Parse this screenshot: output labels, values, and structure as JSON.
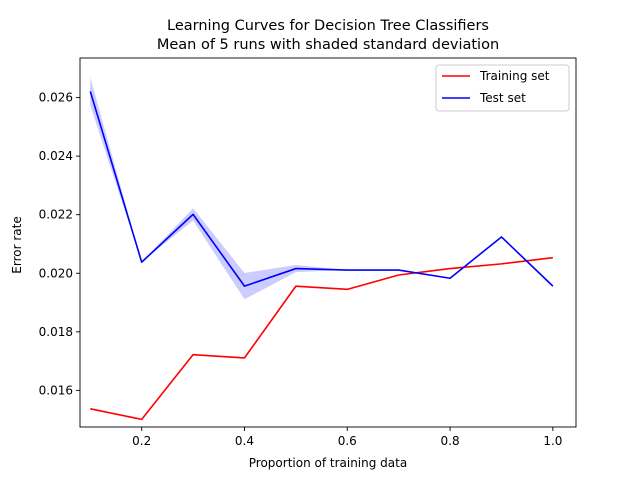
{
  "chart_data": {
    "type": "line",
    "title": "Learning Curves for Decision Tree Classifiers",
    "subtitle": "Mean of 5 runs with shaded standard deviation",
    "xlabel": "Proportion of training data",
    "ylabel": "Error rate",
    "xlim": [
      0.08,
      1.045
    ],
    "ylim": [
      0.01475,
      0.02735
    ],
    "xticks": [
      0.2,
      0.4,
      0.6,
      0.8,
      1.0
    ],
    "xtick_labels": [
      "0.2",
      "0.4",
      "0.6",
      "0.8",
      "1.0"
    ],
    "yticks": [
      0.016,
      0.018,
      0.02,
      0.022,
      0.024,
      0.026
    ],
    "ytick_labels": [
      "0.016",
      "0.018",
      "0.020",
      "0.022",
      "0.024",
      "0.026"
    ],
    "x": [
      0.1,
      0.2,
      0.3,
      0.4,
      0.5,
      0.6,
      0.7,
      0.8,
      0.9,
      1.0
    ],
    "series": [
      {
        "name": "Training set",
        "color": "#ff0000",
        "values": [
          0.01537,
          0.01501,
          0.01722,
          0.01711,
          0.01956,
          0.01945,
          0.01994,
          0.02016,
          0.02032,
          0.02053
        ],
        "std": [
          0,
          0,
          0,
          0,
          0,
          0,
          0,
          0,
          0,
          0
        ]
      },
      {
        "name": "Test set",
        "color": "#0000ff",
        "values": [
          0.02621,
          0.02038,
          0.02201,
          0.01956,
          0.02016,
          0.02011,
          0.02011,
          0.01983,
          0.02124,
          0.01956
        ],
        "std": [
          0.00048,
          0,
          0.00021,
          0.00045,
          0.00012,
          0,
          0,
          0,
          0,
          0
        ]
      }
    ],
    "grid": false,
    "legend_position": "top-right"
  }
}
